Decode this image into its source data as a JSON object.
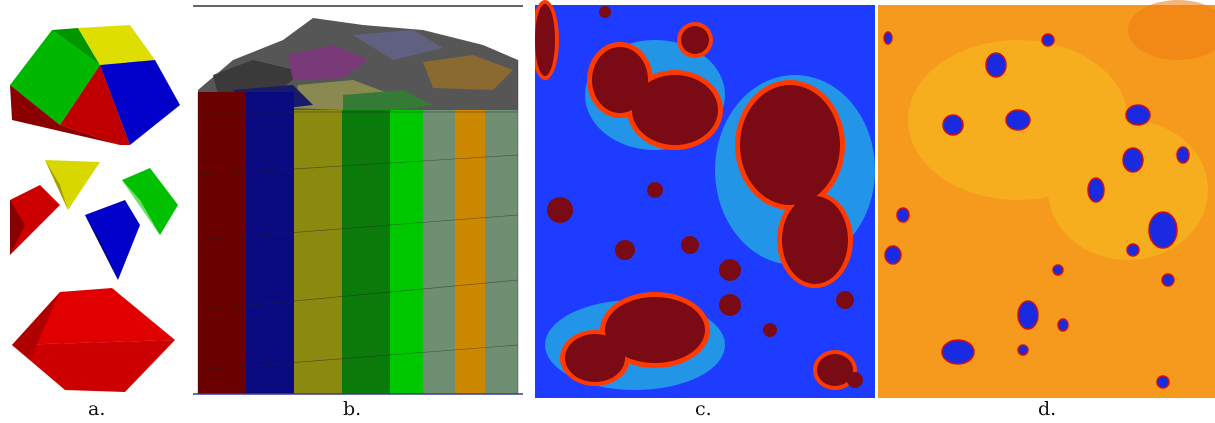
{
  "panels": [
    {
      "id": "a",
      "caption": "a."
    },
    {
      "id": "b",
      "caption": "b."
    },
    {
      "id": "c",
      "caption": "c."
    },
    {
      "id": "d",
      "caption": "d."
    }
  ],
  "colors": {
    "red": "#cc0000",
    "dark_red": "#8a0000",
    "green": "#00c800",
    "dark_green": "#0a7a0a",
    "yellow": "#e8e000",
    "blue": "#0000c8",
    "navy": "#0a0a80",
    "olive": "#8a8a10",
    "sage": "#6f8f72",
    "orange": "#cc8800",
    "maroon": "#6b0000",
    "field_blue": "#1e3cff",
    "field_orange": "#f59a1c"
  }
}
